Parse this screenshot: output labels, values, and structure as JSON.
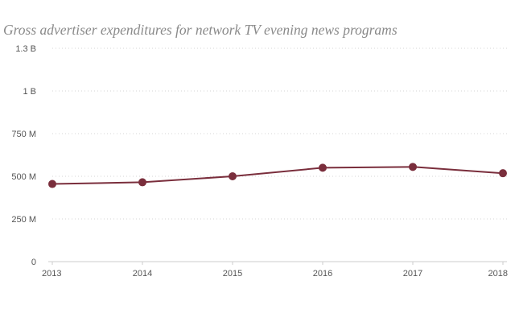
{
  "chart_data": {
    "type": "line",
    "title": "Gross advertiser expenditures for network TV evening news programs",
    "xlabel": "",
    "ylabel": "",
    "categories": [
      "2013",
      "2014",
      "2015",
      "2016",
      "2017",
      "2018"
    ],
    "series": [
      {
        "values": [
          455000000,
          465000000,
          500000000,
          550000000,
          555000000,
          518000000
        ],
        "color": "#7a2e3c"
      }
    ],
    "ylim": [
      0,
      1250000000
    ],
    "y_ticks": [
      {
        "value": 0,
        "label": "0"
      },
      {
        "value": 250000000,
        "label": "250 M"
      },
      {
        "value": 500000000,
        "label": "500 M"
      },
      {
        "value": 750000000,
        "label": "750 M"
      },
      {
        "value": 1000000000,
        "label": "1 B"
      },
      {
        "value": 1250000000,
        "label": "1.3 B"
      }
    ],
    "grid": "horizontal dotted",
    "legend": "none",
    "colors": {
      "line": "#7a2e3c",
      "marker": "#7a2e3c",
      "grid": "#d5d5d5",
      "axis": "#cccccc",
      "title": "#8a8a8a",
      "tick_text": "#555555"
    }
  }
}
